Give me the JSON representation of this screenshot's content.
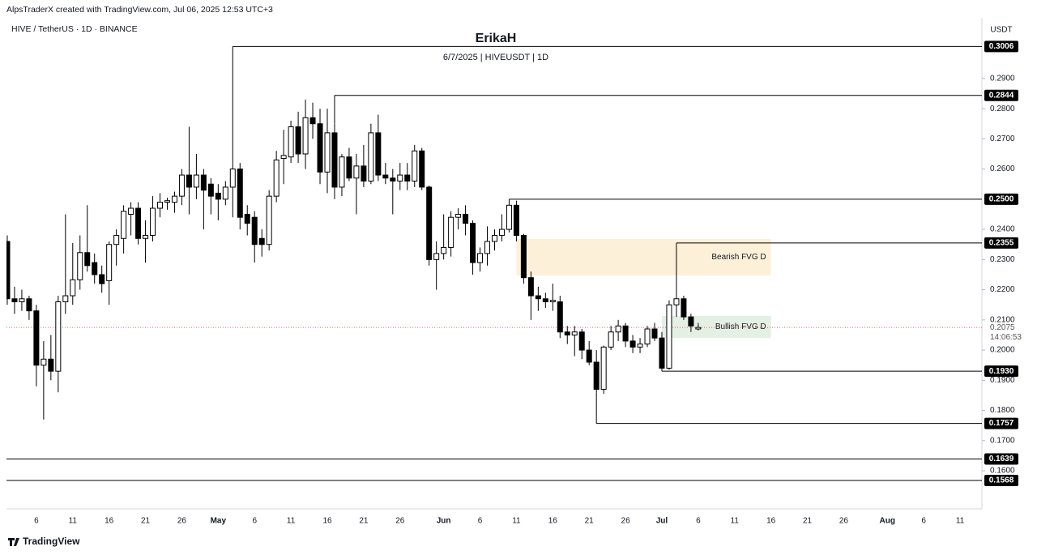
{
  "header": "AlpsTraderX created with TradingView.com, Jul 06, 2025 12:53 UTC+3",
  "brand": "TradingView",
  "chart_data": {
    "type": "candlestick",
    "symbol": "HIVE / TetherUS · 1D · BINANCE",
    "title": "ErikaH",
    "subtitle": "6/7/2025 | HIVEUSDT | 1D",
    "currency": "USDT",
    "up_color": "#ffffff",
    "down_color": "#000000",
    "x": [
      "2025-04-02",
      "2025-04-03",
      "2025-04-04",
      "2025-04-05",
      "2025-04-06",
      "2025-04-07",
      "2025-04-08",
      "2025-04-09",
      "2025-04-10",
      "2025-04-11",
      "2025-04-12",
      "2025-04-13",
      "2025-04-14",
      "2025-04-15",
      "2025-04-16",
      "2025-04-17",
      "2025-04-18",
      "2025-04-19",
      "2025-04-20",
      "2025-04-21",
      "2025-04-22",
      "2025-04-23",
      "2025-04-24",
      "2025-04-25",
      "2025-04-26",
      "2025-04-27",
      "2025-04-28",
      "2025-04-29",
      "2025-04-30",
      "2025-05-01",
      "2025-05-02",
      "2025-05-03",
      "2025-05-04",
      "2025-05-05",
      "2025-05-06",
      "2025-05-07",
      "2025-05-08",
      "2025-05-09",
      "2025-05-10",
      "2025-05-11",
      "2025-05-12",
      "2025-05-13",
      "2025-05-14",
      "2025-05-15",
      "2025-05-16",
      "2025-05-17",
      "2025-05-18",
      "2025-05-19",
      "2025-05-20",
      "2025-05-21",
      "2025-05-22",
      "2025-05-23",
      "2025-05-24",
      "2025-05-25",
      "2025-05-26",
      "2025-05-27",
      "2025-05-28",
      "2025-05-29",
      "2025-05-30",
      "2025-05-31",
      "2025-06-01",
      "2025-06-02",
      "2025-06-03",
      "2025-06-04",
      "2025-06-05",
      "2025-06-06",
      "2025-06-07",
      "2025-06-08",
      "2025-06-09",
      "2025-06-10",
      "2025-06-11",
      "2025-06-12",
      "2025-06-13",
      "2025-06-14",
      "2025-06-15",
      "2025-06-16",
      "2025-06-17",
      "2025-06-18",
      "2025-06-19",
      "2025-06-20",
      "2025-06-21",
      "2025-06-22",
      "2025-06-23",
      "2025-06-24",
      "2025-06-25",
      "2025-06-26",
      "2025-06-27",
      "2025-06-28",
      "2025-06-29",
      "2025-06-30",
      "2025-07-01",
      "2025-07-02",
      "2025-07-03",
      "2025-07-04",
      "2025-07-05",
      "2025-07-06"
    ],
    "open": [
      0.236,
      0.217,
      0.216,
      0.217,
      0.213,
      0.195,
      0.197,
      0.193,
      0.216,
      0.218,
      0.2233,
      0.2323,
      0.229,
      0.225,
      0.223,
      0.235,
      0.237,
      0.245,
      0.247,
      0.237,
      0.238,
      0.247,
      0.249,
      0.249,
      0.251,
      0.258,
      0.254,
      0.258,
      0.255,
      0.252,
      0.25,
      0.254,
      0.26,
      0.245,
      0.244,
      0.237,
      0.235,
      0.251,
      0.2635,
      0.264,
      0.274,
      0.265,
      0.277,
      0.275,
      0.259,
      0.272,
      0.254,
      0.264,
      0.257,
      0.261,
      0.256,
      0.272,
      0.258,
      0.257,
      0.256,
      0.258,
      0.256,
      0.266,
      0.254,
      0.23,
      0.232,
      0.234,
      0.244,
      0.245,
      0.242,
      0.229,
      0.232,
      0.236,
      0.238,
      0.24,
      0.248,
      0.238,
      0.224,
      0.218,
      0.217,
      0.216,
      0.216,
      0.206,
      0.205,
      0.206,
      0.2,
      0.196,
      0.187,
      0.201,
      0.206,
      0.208,
      0.203,
      0.201,
      0.202,
      0.207,
      0.204,
      0.194,
      0.215,
      0.217,
      0.211,
      0.207
    ],
    "high": [
      0.238,
      0.221,
      0.22,
      0.218,
      0.215,
      0.203,
      0.205,
      0.218,
      0.245,
      0.2355,
      0.238,
      0.248,
      0.232,
      0.228,
      0.236,
      0.24,
      0.248,
      0.249,
      0.249,
      0.243,
      0.251,
      0.252,
      0.2505,
      0.2525,
      0.26,
      0.274,
      0.265,
      0.26,
      0.257,
      0.255,
      0.256,
      0.262,
      0.262,
      0.248,
      0.246,
      0.24,
      0.253,
      0.266,
      0.273,
      0.276,
      0.279,
      0.283,
      0.282,
      0.28,
      0.28,
      0.275,
      0.265,
      0.267,
      0.265,
      0.268,
      0.275,
      0.278,
      0.262,
      0.26,
      0.262,
      0.262,
      0.268,
      0.267,
      0.2545,
      0.236,
      0.245,
      0.246,
      0.247,
      0.248,
      0.243,
      0.234,
      0.241,
      0.24,
      0.245,
      0.25,
      0.2495,
      0.2385,
      0.226,
      0.221,
      0.219,
      0.222,
      0.218,
      0.208,
      0.208,
      0.207,
      0.203,
      0.2,
      0.2015,
      0.208,
      0.21,
      0.209,
      0.205,
      0.204,
      0.208,
      0.209,
      0.206,
      0.2165,
      0.2175,
      0.218,
      0.212,
      0.209
    ],
    "low": [
      0.215,
      0.212,
      0.213,
      0.21,
      0.188,
      0.177,
      0.19,
      0.186,
      0.212,
      0.215,
      0.22,
      0.226,
      0.222,
      0.219,
      0.215,
      0.228,
      0.232,
      0.238,
      0.235,
      0.229,
      0.236,
      0.244,
      0.2465,
      0.2455,
      0.248,
      0.245,
      0.25,
      0.24,
      0.245,
      0.243,
      0.248,
      0.244,
      0.24,
      0.238,
      0.229,
      0.231,
      0.233,
      0.249,
      0.255,
      0.262,
      0.262,
      0.26,
      0.27,
      0.255,
      0.252,
      0.25,
      0.251,
      0.256,
      0.245,
      0.254,
      0.255,
      0.256,
      0.255,
      0.245,
      0.253,
      0.253,
      0.254,
      0.253,
      0.228,
      0.22,
      0.23,
      0.231,
      0.24,
      0.238,
      0.225,
      0.226,
      0.228,
      0.233,
      0.236,
      0.239,
      0.236,
      0.222,
      0.21,
      0.213,
      0.214,
      0.213,
      0.204,
      0.202,
      0.198,
      0.197,
      0.195,
      0.186,
      0.1855,
      0.2,
      0.203,
      0.201,
      0.199,
      0.199,
      0.201,
      0.203,
      0.193,
      0.1935,
      0.211,
      0.21,
      0.206,
      0.2065
    ],
    "close": [
      0.217,
      0.216,
      0.217,
      0.213,
      0.195,
      0.197,
      0.193,
      0.216,
      0.218,
      0.2233,
      0.2323,
      0.228,
      0.225,
      0.222,
      0.235,
      0.238,
      0.246,
      0.247,
      0.237,
      0.238,
      0.247,
      0.249,
      0.2495,
      0.251,
      0.258,
      0.254,
      0.258,
      0.253,
      0.251,
      0.25,
      0.254,
      0.26,
      0.244,
      0.242,
      0.235,
      0.235,
      0.251,
      0.263,
      0.2645,
      0.274,
      0.265,
      0.277,
      0.275,
      0.259,
      0.272,
      0.254,
      0.264,
      0.257,
      0.261,
      0.256,
      0.272,
      0.258,
      0.257,
      0.256,
      0.258,
      0.256,
      0.266,
      0.254,
      0.23,
      0.232,
      0.234,
      0.244,
      0.245,
      0.242,
      0.229,
      0.232,
      0.236,
      0.238,
      0.24,
      0.248,
      0.238,
      0.224,
      0.218,
      0.217,
      0.216,
      0.2165,
      0.206,
      0.205,
      0.206,
      0.2,
      0.196,
      0.187,
      0.201,
      0.206,
      0.208,
      0.203,
      0.201,
      0.202,
      0.207,
      0.204,
      0.194,
      0.215,
      0.217,
      0.211,
      0.208,
      0.2075
    ],
    "xlim": [
      "2025-04-01",
      "2025-08-14"
    ],
    "xticks": [
      {
        "value": "2025-04-06",
        "label": "6"
      },
      {
        "value": "2025-04-11",
        "label": "11"
      },
      {
        "value": "2025-04-16",
        "label": "16"
      },
      {
        "value": "2025-04-21",
        "label": "21"
      },
      {
        "value": "2025-04-26",
        "label": "26"
      },
      {
        "value": "2025-05-01",
        "label": "May"
      },
      {
        "value": "2025-05-06",
        "label": "6"
      },
      {
        "value": "2025-05-11",
        "label": "11"
      },
      {
        "value": "2025-05-16",
        "label": "16"
      },
      {
        "value": "2025-05-21",
        "label": "21"
      },
      {
        "value": "2025-05-26",
        "label": "26"
      },
      {
        "value": "2025-06-01",
        "label": "Jun"
      },
      {
        "value": "2025-06-06",
        "label": "6"
      },
      {
        "value": "2025-06-11",
        "label": "11"
      },
      {
        "value": "2025-06-16",
        "label": "16"
      },
      {
        "value": "2025-06-21",
        "label": "21"
      },
      {
        "value": "2025-06-26",
        "label": "26"
      },
      {
        "value": "2025-07-01",
        "label": "Jul"
      },
      {
        "value": "2025-07-06",
        "label": "6"
      },
      {
        "value": "2025-07-11",
        "label": "11"
      },
      {
        "value": "2025-07-16",
        "label": "16"
      },
      {
        "value": "2025-07-21",
        "label": "21"
      },
      {
        "value": "2025-07-26",
        "label": "26"
      },
      {
        "value": "2025-08-01",
        "label": "Aug"
      },
      {
        "value": "2025-08-06",
        "label": "6"
      },
      {
        "value": "2025-08-11",
        "label": "11"
      }
    ],
    "ylim": [
      0.1474,
      0.3101
    ],
    "yticks": [
      {
        "value": 0.29,
        "label": "0.2900"
      },
      {
        "value": 0.28,
        "label": "0.2800"
      },
      {
        "value": 0.27,
        "label": "0.2700"
      },
      {
        "value": 0.26,
        "label": "0.2600"
      },
      {
        "value": 0.24,
        "label": "0.2400"
      },
      {
        "value": 0.23,
        "label": "0.2300"
      },
      {
        "value": 0.22,
        "label": "0.2200"
      },
      {
        "value": 0.21,
        "label": "0.2100"
      },
      {
        "value": 0.2,
        "label": "0.2000"
      },
      {
        "value": 0.19,
        "label": "0.1900"
      },
      {
        "value": 0.18,
        "label": "0.1800"
      },
      {
        "value": 0.17,
        "label": "0.1700"
      },
      {
        "value": 0.16,
        "label": "0.1600"
      }
    ],
    "levels": [
      {
        "value": 0.3006,
        "label": "0.3006",
        "from": "2025-05-03"
      },
      {
        "value": 0.2844,
        "label": "0.2844",
        "from": "2025-05-17"
      },
      {
        "value": 0.25,
        "label": "0.2500",
        "from": "2025-06-10"
      },
      {
        "value": 0.2355,
        "label": "0.2355",
        "from": "2025-07-03"
      },
      {
        "value": 0.193,
        "label": "0.1930",
        "from": "2025-07-01"
      },
      {
        "value": 0.1757,
        "label": "0.1757",
        "from": "2025-06-22"
      },
      {
        "value": 0.1639,
        "label": "0.1639"
      },
      {
        "value": 0.1568,
        "label": "0.1568"
      }
    ],
    "zones": [
      {
        "name": "Bearish FVG D",
        "from": "2025-06-11",
        "to": "2025-07-16",
        "top": 0.2368,
        "bottom": 0.2247,
        "color": "#fdf0d8"
      },
      {
        "name": "Bullish FVG D",
        "from": "2025-07-01",
        "to": "2025-07-16",
        "top": 0.2113,
        "bottom": 0.204,
        "color": "#e3f0e3"
      }
    ],
    "last_price": {
      "value": 0.2075,
      "label": "0.2075",
      "countdown": "14:06:53",
      "color": "#f23645"
    }
  }
}
